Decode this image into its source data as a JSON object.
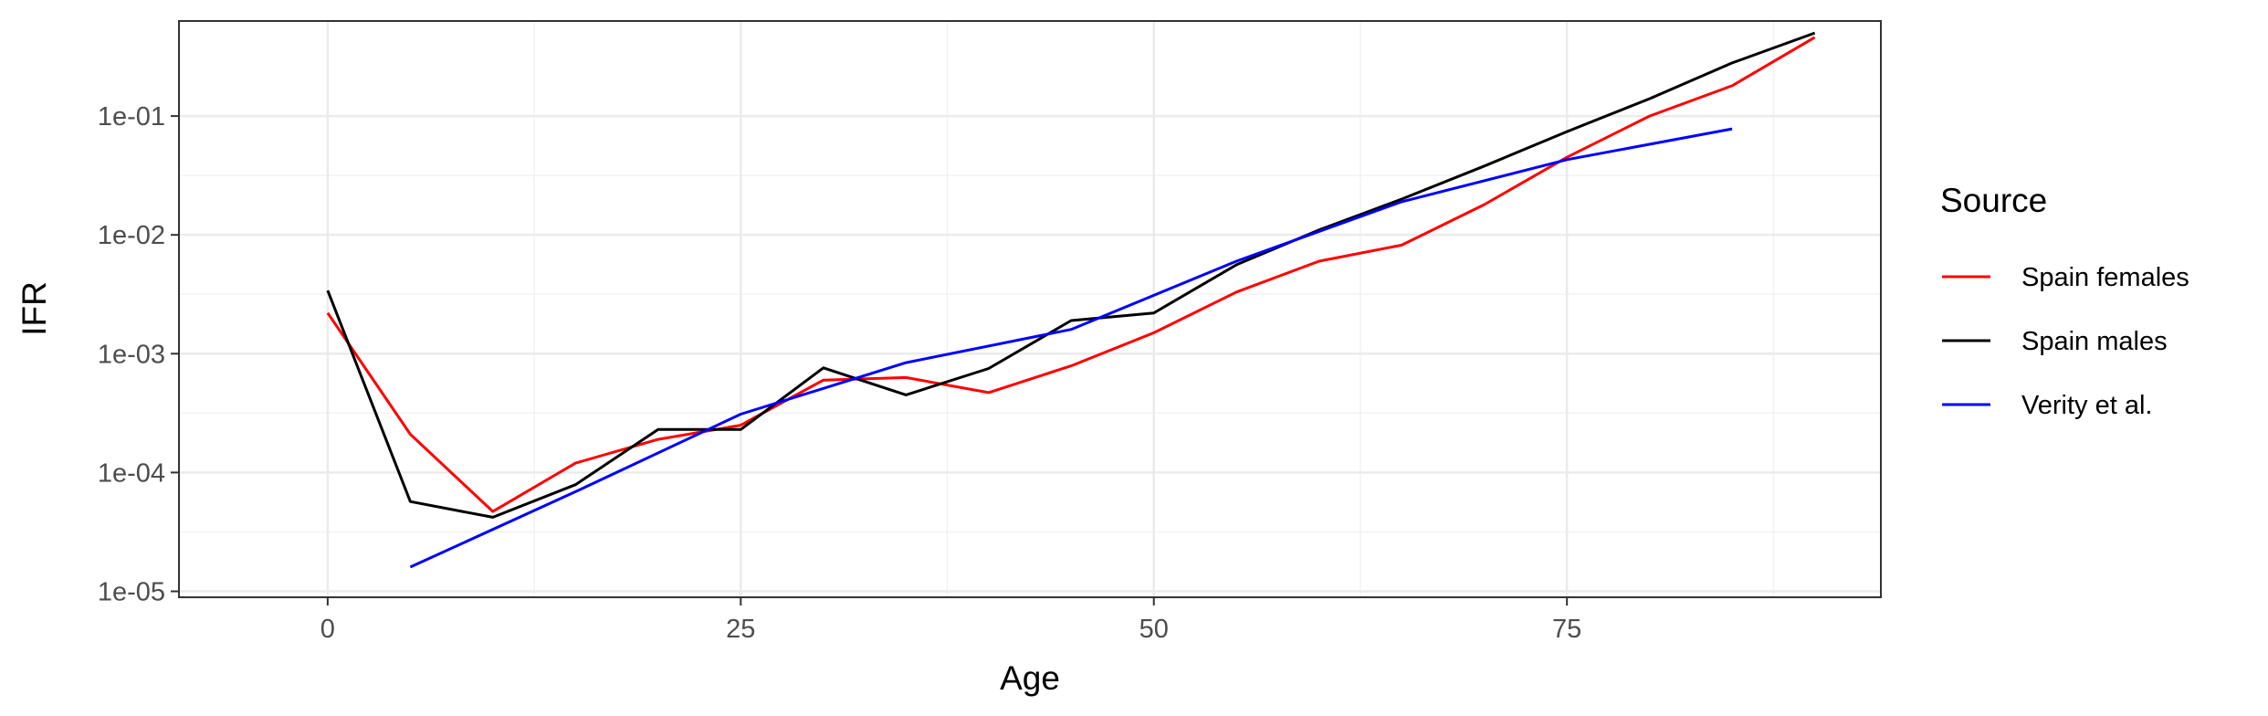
{
  "chart_data": {
    "type": "line",
    "xlabel": "Age",
    "ylabel": "IFR",
    "xlim": [
      -9,
      94
    ],
    "ylim_log10": [
      -5.05,
      -0.2
    ],
    "y_scale": "log",
    "x_ticks": [
      0,
      25,
      50,
      75
    ],
    "x_tick_labels": [
      "0",
      "25",
      "50",
      "75"
    ],
    "y_ticks": [
      1e-05,
      0.0001,
      0.001,
      0.01,
      0.1
    ],
    "y_tick_labels": [
      "1e-05",
      "1e-04",
      "1e-03",
      "1e-02",
      "1e-01"
    ],
    "grid": true,
    "legend": {
      "title": "Source",
      "position": "right"
    },
    "series": [
      {
        "name": "Spain females",
        "color": "#ff0000",
        "x": [
          0,
          5,
          10,
          15,
          20,
          25,
          30,
          35,
          40,
          45,
          50,
          55,
          60,
          65,
          70,
          75,
          80,
          85,
          90
        ],
        "y": [
          0.0022,
          0.00021,
          4.7e-05,
          0.00012,
          0.00019,
          0.00025,
          0.0006,
          0.00063,
          0.00047,
          0.00079,
          0.0015,
          0.0033,
          0.006,
          0.0082,
          0.018,
          0.045,
          0.1,
          0.18,
          0.46
        ]
      },
      {
        "name": "Spain males",
        "color": "#000000",
        "x": [
          0,
          5,
          10,
          15,
          20,
          25,
          30,
          35,
          40,
          45,
          50,
          55,
          60,
          65,
          70,
          75,
          80,
          85,
          90
        ],
        "y": [
          0.0034,
          5.7e-05,
          4.2e-05,
          7.9e-05,
          0.00023,
          0.00023,
          0.00076,
          0.00045,
          0.00075,
          0.0019,
          0.0022,
          0.0056,
          0.011,
          0.02,
          0.038,
          0.074,
          0.14,
          0.28,
          0.5
        ]
      },
      {
        "name": "Verity et al.",
        "color": "#0000ff",
        "x": [
          5,
          15,
          25,
          35,
          45,
          55,
          65,
          75,
          85
        ],
        "y": [
          1.6e-05,
          6.9e-05,
          0.00031,
          0.00084,
          0.0016,
          0.006,
          0.019,
          0.043,
          0.078
        ]
      }
    ]
  }
}
